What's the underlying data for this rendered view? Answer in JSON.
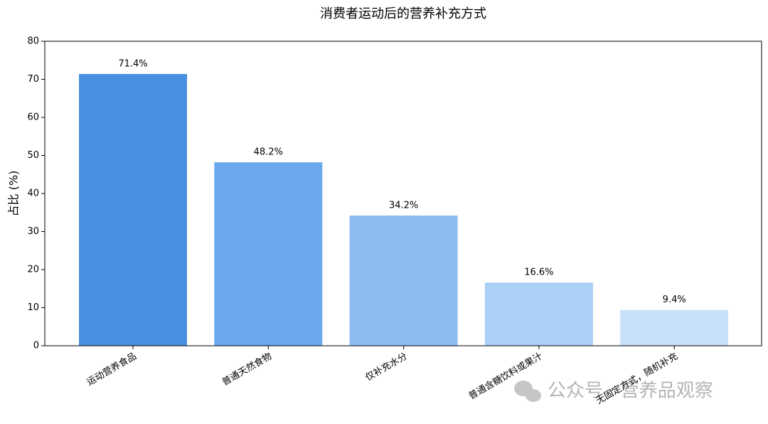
{
  "chart_data": {
    "type": "bar",
    "title": "消费者运动后的营养补充方式",
    "y_label": "占比 (%)",
    "categories": [
      "运动营养食品",
      "普通天然食物",
      "仅补充水分",
      "普通含糖饮料或果汁",
      "无固定方式，随机补充"
    ],
    "values": [
      71.4,
      48.2,
      34.2,
      16.6,
      9.4
    ],
    "value_labels": [
      "71.4%",
      "48.2%",
      "34.2%",
      "16.6%",
      "9.4%"
    ],
    "colors": [
      "#4a90e2",
      "#6aa8ec",
      "#8dbcf2",
      "#abcff5",
      "#c8e0fa"
    ],
    "ylim": [
      0,
      80
    ],
    "yticks": [
      0,
      10,
      20,
      30,
      40,
      50,
      60,
      70,
      80
    ],
    "grid": false
  },
  "watermark": "公众号 · 营养品观察"
}
